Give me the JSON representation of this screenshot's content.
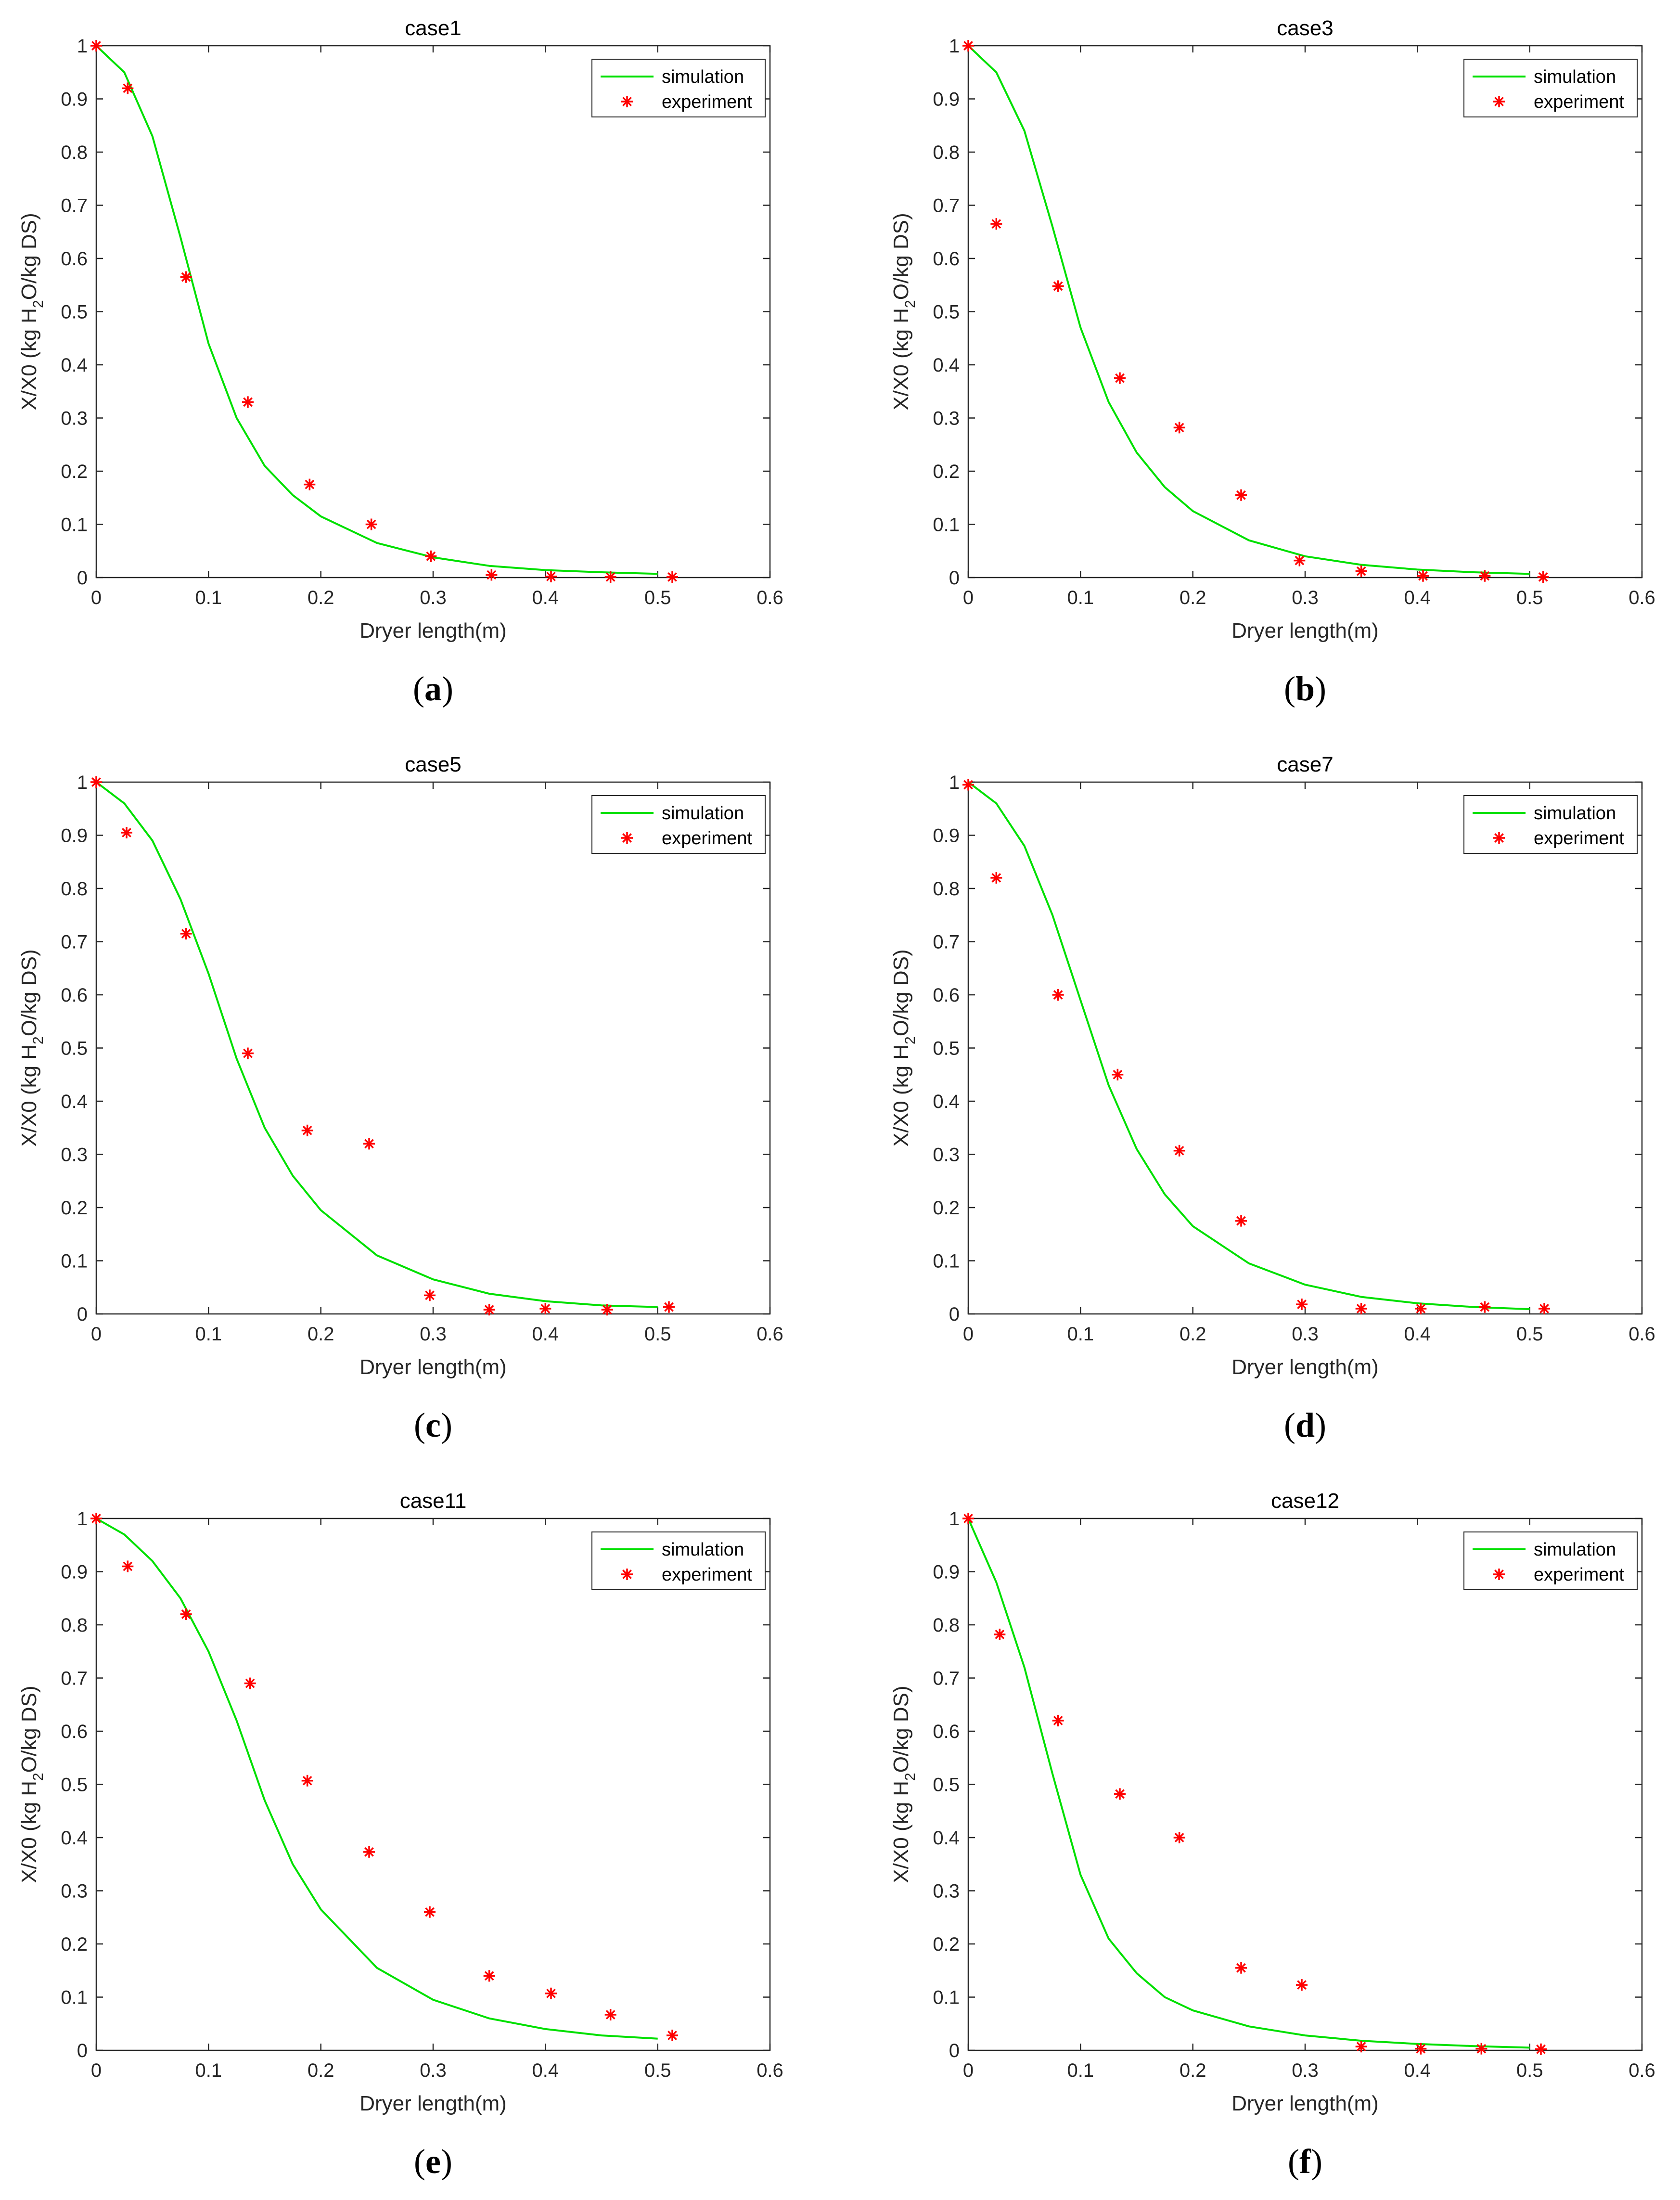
{
  "figure": {
    "xlabel": "Dryer length(m)",
    "ylabel_parts": [
      "X/X0 (kg H",
      "2",
      "O/kg DS)"
    ],
    "xlim": [
      0,
      0.6
    ],
    "ylim": [
      0,
      1
    ],
    "x_ticks": [
      "0",
      "0.1",
      "0.2",
      "0.3",
      "0.4",
      "0.5",
      "0.6"
    ],
    "y_ticks": [
      "0",
      "0.1",
      "0.2",
      "0.3",
      "0.4",
      "0.5",
      "0.6",
      "0.7",
      "0.8",
      "0.9",
      "1"
    ],
    "legend_labels": [
      "simulation",
      "experiment"
    ],
    "colors": {
      "simulation": "#00e000",
      "experiment": "#ff0000",
      "axis": "#262626"
    }
  },
  "chart_data": [
    {
      "type": "line",
      "title": "case1",
      "panel_label": "a",
      "xlabel": "Dryer length(m)",
      "ylabel": "X/X0 (kg H2O/kg DS)",
      "xlim": [
        0,
        0.6
      ],
      "ylim": [
        0,
        1
      ],
      "legend_position": "top-right",
      "series": [
        {
          "name": "simulation",
          "style": "line",
          "x": [
            0,
            0.025,
            0.05,
            0.075,
            0.1,
            0.125,
            0.15,
            0.175,
            0.2,
            0.25,
            0.3,
            0.35,
            0.4,
            0.45,
            0.5
          ],
          "y": [
            1.0,
            0.95,
            0.83,
            0.64,
            0.44,
            0.3,
            0.21,
            0.155,
            0.115,
            0.065,
            0.038,
            0.022,
            0.014,
            0.01,
            0.007
          ]
        },
        {
          "name": "experiment",
          "style": "marker",
          "x": [
            0,
            0.028,
            0.08,
            0.135,
            0.19,
            0.245,
            0.298,
            0.352,
            0.405,
            0.458,
            0.513
          ],
          "y": [
            1.0,
            0.92,
            0.565,
            0.33,
            0.175,
            0.1,
            0.04,
            0.005,
            0.002,
            0.001,
            0.001
          ]
        }
      ]
    },
    {
      "type": "line",
      "title": "case3",
      "panel_label": "b",
      "xlabel": "Dryer length(m)",
      "ylabel": "X/X0 (kg H2O/kg DS)",
      "xlim": [
        0,
        0.6
      ],
      "ylim": [
        0,
        1
      ],
      "legend_position": "top-right",
      "series": [
        {
          "name": "simulation",
          "style": "line",
          "x": [
            0,
            0.025,
            0.05,
            0.075,
            0.1,
            0.125,
            0.15,
            0.175,
            0.2,
            0.25,
            0.3,
            0.35,
            0.4,
            0.45,
            0.5
          ],
          "y": [
            1.0,
            0.95,
            0.84,
            0.66,
            0.47,
            0.33,
            0.235,
            0.17,
            0.125,
            0.07,
            0.04,
            0.024,
            0.015,
            0.01,
            0.007
          ]
        },
        {
          "name": "experiment",
          "style": "marker",
          "x": [
            0,
            0.025,
            0.08,
            0.135,
            0.188,
            0.243,
            0.295,
            0.35,
            0.405,
            0.46,
            0.512
          ],
          "y": [
            1.0,
            0.665,
            0.548,
            0.375,
            0.282,
            0.155,
            0.032,
            0.012,
            0.003,
            0.003,
            0.001
          ]
        }
      ]
    },
    {
      "type": "line",
      "title": "case5",
      "panel_label": "c",
      "xlabel": "Dryer length(m)",
      "ylabel": "X/X0 (kg H2O/kg DS)",
      "xlim": [
        0,
        0.6
      ],
      "ylim": [
        0,
        1
      ],
      "legend_position": "top-right",
      "series": [
        {
          "name": "simulation",
          "style": "line",
          "x": [
            0,
            0.025,
            0.05,
            0.075,
            0.1,
            0.125,
            0.15,
            0.175,
            0.2,
            0.25,
            0.3,
            0.35,
            0.4,
            0.45,
            0.5
          ],
          "y": [
            1.0,
            0.96,
            0.89,
            0.78,
            0.64,
            0.48,
            0.35,
            0.26,
            0.195,
            0.11,
            0.065,
            0.038,
            0.024,
            0.016,
            0.013
          ]
        },
        {
          "name": "experiment",
          "style": "marker",
          "x": [
            0,
            0.027,
            0.08,
            0.135,
            0.188,
            0.243,
            0.297,
            0.35,
            0.4,
            0.455,
            0.51
          ],
          "y": [
            1.0,
            0.905,
            0.715,
            0.49,
            0.345,
            0.32,
            0.035,
            0.008,
            0.01,
            0.008,
            0.013
          ]
        }
      ]
    },
    {
      "type": "line",
      "title": "case7",
      "panel_label": "d",
      "xlabel": "Dryer length(m)",
      "ylabel": "X/X0 (kg H2O/kg DS)",
      "xlim": [
        0,
        0.6
      ],
      "ylim": [
        0,
        1
      ],
      "legend_position": "top-right",
      "series": [
        {
          "name": "simulation",
          "style": "line",
          "x": [
            0,
            0.025,
            0.05,
            0.075,
            0.1,
            0.125,
            0.15,
            0.175,
            0.2,
            0.25,
            0.3,
            0.35,
            0.4,
            0.45,
            0.5
          ],
          "y": [
            1.0,
            0.96,
            0.88,
            0.75,
            0.59,
            0.43,
            0.31,
            0.225,
            0.165,
            0.095,
            0.055,
            0.032,
            0.02,
            0.013,
            0.009
          ]
        },
        {
          "name": "experiment",
          "style": "marker",
          "x": [
            0,
            0.025,
            0.08,
            0.133,
            0.188,
            0.243,
            0.297,
            0.35,
            0.403,
            0.46,
            0.513
          ],
          "y": [
            0.995,
            0.82,
            0.6,
            0.45,
            0.307,
            0.175,
            0.018,
            0.01,
            0.01,
            0.013,
            0.01
          ]
        }
      ]
    },
    {
      "type": "line",
      "title": "case11",
      "panel_label": "e",
      "xlabel": "Dryer length(m)",
      "ylabel": "X/X0 (kg H2O/kg DS)",
      "xlim": [
        0,
        0.6
      ],
      "ylim": [
        0,
        1
      ],
      "legend_position": "top-right",
      "series": [
        {
          "name": "simulation",
          "style": "line",
          "x": [
            0,
            0.025,
            0.05,
            0.075,
            0.1,
            0.125,
            0.15,
            0.175,
            0.2,
            0.25,
            0.3,
            0.35,
            0.4,
            0.45,
            0.5
          ],
          "y": [
            1.0,
            0.97,
            0.92,
            0.85,
            0.75,
            0.62,
            0.47,
            0.35,
            0.265,
            0.155,
            0.095,
            0.06,
            0.04,
            0.028,
            0.022
          ]
        },
        {
          "name": "experiment",
          "style": "marker",
          "x": [
            0,
            0.028,
            0.08,
            0.137,
            0.188,
            0.243,
            0.297,
            0.35,
            0.405,
            0.458,
            0.513
          ],
          "y": [
            1.0,
            0.91,
            0.82,
            0.69,
            0.507,
            0.373,
            0.26,
            0.14,
            0.107,
            0.067,
            0.028
          ]
        }
      ]
    },
    {
      "type": "line",
      "title": "case12",
      "panel_label": "f",
      "xlabel": "Dryer length(m)",
      "ylabel": "X/X0 (kg H2O/kg DS)",
      "xlim": [
        0,
        0.6
      ],
      "ylim": [
        0,
        1
      ],
      "legend_position": "top-right",
      "series": [
        {
          "name": "simulation",
          "style": "line",
          "x": [
            0,
            0.025,
            0.05,
            0.075,
            0.1,
            0.125,
            0.15,
            0.175,
            0.2,
            0.25,
            0.3,
            0.35,
            0.4,
            0.45,
            0.5
          ],
          "y": [
            1.0,
            0.88,
            0.72,
            0.52,
            0.33,
            0.21,
            0.145,
            0.1,
            0.075,
            0.045,
            0.028,
            0.018,
            0.012,
            0.008,
            0.005
          ]
        },
        {
          "name": "experiment",
          "style": "marker",
          "x": [
            0,
            0.028,
            0.08,
            0.135,
            0.188,
            0.243,
            0.297,
            0.35,
            0.403,
            0.457,
            0.51
          ],
          "y": [
            1.0,
            0.782,
            0.62,
            0.482,
            0.4,
            0.155,
            0.123,
            0.007,
            0.003,
            0.003,
            0.002
          ]
        }
      ]
    }
  ]
}
